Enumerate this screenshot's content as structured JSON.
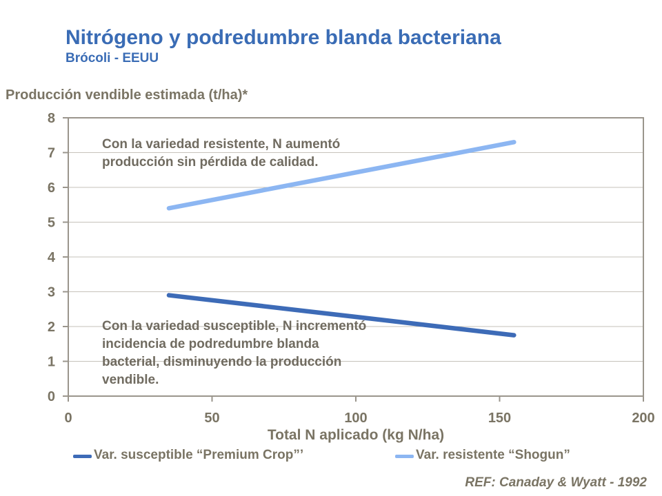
{
  "page": {
    "title": "Nitrógeno y podredumbre blanda bacteriana",
    "subtitle": "Brócoli - EEUU",
    "reference": "REF: Canaday & Wyatt - 1992"
  },
  "axes": {
    "y_title": "Producción vendible estimada (t/ha)*",
    "x_title": "Total N aplicado (kg N/ha)"
  },
  "annotations": {
    "resistant": "Con la variedad resistente, N aumentó\nproducción sin pérdida de calidad.",
    "susceptible": "Con la variedad susceptible, N incrementó\nincidencia de podredumbre blanda\nbacterial, disminuyendo la producción\nvendible."
  },
  "colors": {
    "title_blue": "#3a6cb5",
    "axis_text": "#7a7464",
    "annotation_text": "#706b60",
    "grid": "#c6c2ba",
    "plot_border": "#9a958c",
    "susceptible_line": "#3d6bb7",
    "resistant_line": "#8cb6f2"
  },
  "chart_data": {
    "type": "line",
    "title": "Nitrógeno y podredumbre blanda bacteriana",
    "subtitle": "Brócoli - EEUU",
    "xlabel": "Total N aplicado (kg N/ha)",
    "ylabel": "Producción vendible estimada (t/ha)*",
    "xlim": [
      0,
      200
    ],
    "ylim": [
      0,
      8
    ],
    "x_ticks": [
      0,
      50,
      100,
      150,
      200
    ],
    "y_ticks": [
      0,
      1,
      2,
      3,
      4,
      5,
      6,
      7,
      8
    ],
    "grid": "horizontal",
    "legend_position": "bottom",
    "series": [
      {
        "name": "Var. susceptible “Premium Crop”’",
        "color": "#3d6bb7",
        "points": [
          [
            35,
            2.9
          ],
          [
            155,
            1.75
          ]
        ]
      },
      {
        "name": "Var. resistente “Shogun”",
        "color": "#8cb6f2",
        "points": [
          [
            35,
            5.4
          ],
          [
            155,
            7.3
          ]
        ]
      }
    ]
  }
}
